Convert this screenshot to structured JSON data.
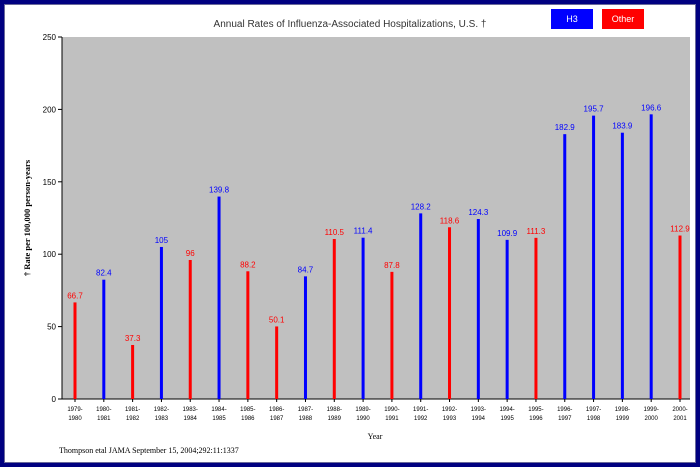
{
  "chart_data": {
    "type": "bar",
    "title": "Annual Rates of Influenza-Associated Hospitalizations, U.S. †",
    "xlabel": "Year",
    "ylabel": "† Rate per 100,000 person-years",
    "ylim": [
      0,
      250
    ],
    "yticks": [
      0,
      50,
      100,
      150,
      200,
      250
    ],
    "legend": [
      {
        "name": "H3",
        "color": "#0000ff"
      },
      {
        "name": "Other",
        "color": "#ff0000"
      }
    ],
    "bars": [
      {
        "season": [
          "1979-",
          "1980"
        ],
        "value": 66.7,
        "label": "66.7",
        "strain": "Other"
      },
      {
        "season": [
          "1980-",
          "1981"
        ],
        "value": 82.4,
        "label": "82.4",
        "strain": "H3"
      },
      {
        "season": [
          "1981-",
          "1982"
        ],
        "value": 37.3,
        "label": "37.3",
        "strain": "Other"
      },
      {
        "season": [
          "1982-",
          "1983"
        ],
        "value": 105,
        "label": "105",
        "strain": "H3"
      },
      {
        "season": [
          "1983-",
          "1984"
        ],
        "value": 96,
        "label": "96",
        "strain": "Other"
      },
      {
        "season": [
          "1984-",
          "1985"
        ],
        "value": 139.8,
        "label": "139.8",
        "strain": "H3"
      },
      {
        "season": [
          "1985-",
          "1986"
        ],
        "value": 88.2,
        "label": "88.2",
        "strain": "Other"
      },
      {
        "season": [
          "1986-",
          "1987"
        ],
        "value": 50.1,
        "label": "50.1",
        "strain": "Other"
      },
      {
        "season": [
          "1987-",
          "1988"
        ],
        "value": 84.7,
        "label": "84.7",
        "strain": "H3"
      },
      {
        "season": [
          "1988-",
          "1989"
        ],
        "value": 110.5,
        "label": "110.5",
        "strain": "Other"
      },
      {
        "season": [
          "1989-",
          "1990"
        ],
        "value": 111.4,
        "label": "111.4",
        "strain": "H3"
      },
      {
        "season": [
          "1990-",
          "1991"
        ],
        "value": 87.8,
        "label": "87.8",
        "strain": "Other"
      },
      {
        "season": [
          "1991-",
          "1992"
        ],
        "value": 128.2,
        "label": "128.2",
        "strain": "H3"
      },
      {
        "season": [
          "1992-",
          "1993"
        ],
        "value": 118.6,
        "label": "118.6",
        "strain": "Other"
      },
      {
        "season": [
          "1993-",
          "1994"
        ],
        "value": 124.3,
        "label": "124.3",
        "strain": "H3"
      },
      {
        "season": [
          "1994-",
          "1995"
        ],
        "value": 109.9,
        "label": "109.9",
        "strain": "H3"
      },
      {
        "season": [
          "1995-",
          "1996"
        ],
        "value": 111.3,
        "label": "111.3",
        "strain": "Other"
      },
      {
        "season": [
          "1996-",
          "1997"
        ],
        "value": 182.9,
        "label": "182.9",
        "strain": "H3"
      },
      {
        "season": [
          "1997-",
          "1998"
        ],
        "value": 195.7,
        "label": "195.7",
        "strain": "H3"
      },
      {
        "season": [
          "1998-",
          "1999"
        ],
        "value": 183.9,
        "label": "183.9",
        "strain": "H3"
      },
      {
        "season": [
          "1999-",
          "2000"
        ],
        "value": 196.6,
        "label": "196.6",
        "strain": "H3"
      },
      {
        "season": [
          "2000-",
          "2001"
        ],
        "value": 112.9,
        "label": "112.9",
        "strain": "Other"
      }
    ]
  },
  "source": "Thompson etal JAMA September 15, 2004;292:11:1337",
  "colors": {
    "plot_bg": "#c0c0c0",
    "H3": "#0000ff",
    "Other": "#ff0000"
  }
}
